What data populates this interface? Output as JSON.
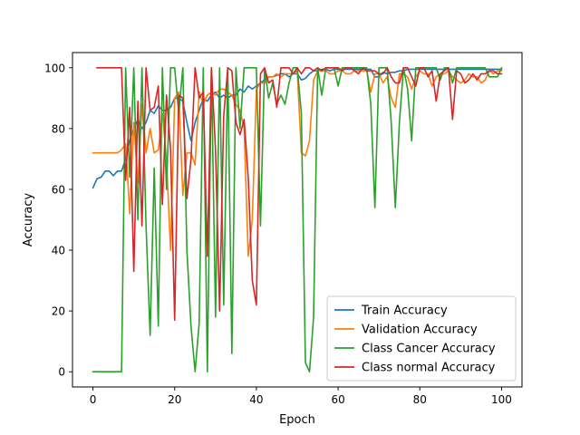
{
  "chart_data": {
    "type": "line",
    "title": "",
    "xlabel": "Epoch",
    "ylabel": "Accuracy",
    "xlim": [
      -5,
      105
    ],
    "ylim": [
      -5,
      105
    ],
    "xticks": [
      0,
      20,
      40,
      60,
      80,
      100
    ],
    "yticks": [
      0,
      20,
      40,
      60,
      80,
      100
    ],
    "grid": false,
    "legend_position": "lower right",
    "series": [
      {
        "name": "Train Accuracy",
        "color": "#1f77b4",
        "x": [
          0,
          1,
          2,
          3,
          4,
          5,
          6,
          7,
          8,
          9,
          10,
          11,
          12,
          13,
          14,
          15,
          16,
          17,
          18,
          19,
          20,
          21,
          22,
          23,
          24,
          25,
          26,
          27,
          28,
          29,
          30,
          31,
          32,
          33,
          34,
          35,
          36,
          37,
          38,
          39,
          40,
          41,
          42,
          43,
          44,
          45,
          46,
          47,
          48,
          49,
          50,
          51,
          52,
          53,
          54,
          55,
          56,
          57,
          58,
          59,
          60,
          61,
          62,
          63,
          64,
          65,
          66,
          67,
          68,
          69,
          70,
          71,
          72,
          73,
          74,
          75,
          76,
          77,
          78,
          79,
          80,
          81,
          82,
          83,
          84,
          85,
          86,
          87,
          88,
          89,
          90,
          91,
          92,
          93,
          94,
          95,
          96,
          97,
          98,
          99,
          100
        ],
        "y": [
          60.5,
          63.5,
          64,
          66,
          66,
          64.5,
          66,
          66,
          70,
          76,
          80,
          83,
          80,
          82,
          86,
          85,
          87.5,
          86,
          86,
          87,
          90,
          90,
          89,
          82,
          76,
          82,
          86,
          90,
          89,
          91,
          92,
          90,
          91,
          90,
          91,
          91,
          93,
          92,
          94,
          93,
          94,
          95,
          96,
          97,
          97,
          97.5,
          98,
          98,
          97,
          98,
          98,
          96,
          96.5,
          98,
          99,
          99,
          99.5,
          99.5,
          99,
          99.5,
          99.5,
          99.5,
          99.5,
          99.5,
          99.5,
          99.5,
          99.5,
          99.5,
          99.5,
          97,
          97,
          98.5,
          98,
          98.5,
          98.5,
          99,
          99,
          99.5,
          99.5,
          99.5,
          99.5,
          99.5,
          99.5,
          99.5,
          99.5,
          99.5,
          99.5,
          99.5,
          99.5,
          99.5,
          99.5,
          99.5,
          99.5,
          99.5,
          99.5,
          99.5,
          99.5,
          99.5,
          99.5,
          99.5,
          99.5
        ]
      },
      {
        "name": "Validation Accuracy",
        "color": "#ff7f0e",
        "x": [
          0,
          1,
          2,
          3,
          4,
          5,
          6,
          7,
          8,
          9,
          10,
          11,
          12,
          13,
          14,
          15,
          16,
          17,
          18,
          19,
          20,
          21,
          22,
          23,
          24,
          25,
          26,
          27,
          28,
          29,
          30,
          31,
          32,
          33,
          34,
          35,
          36,
          37,
          38,
          39,
          40,
          41,
          42,
          43,
          44,
          45,
          46,
          47,
          48,
          49,
          50,
          51,
          52,
          53,
          54,
          55,
          56,
          57,
          58,
          59,
          60,
          61,
          62,
          63,
          64,
          65,
          66,
          67,
          68,
          69,
          70,
          71,
          72,
          73,
          74,
          75,
          76,
          77,
          78,
          79,
          80,
          81,
          82,
          83,
          84,
          85,
          86,
          87,
          88,
          89,
          90,
          91,
          92,
          93,
          94,
          95,
          96,
          97,
          98,
          99,
          100
        ],
        "y": [
          72,
          72,
          72,
          72,
          72,
          72,
          72,
          73,
          75,
          52,
          82,
          62,
          88,
          72,
          80,
          72,
          73,
          85,
          70,
          40,
          90,
          92,
          58,
          72,
          72,
          68,
          92,
          88,
          91,
          92,
          91,
          93,
          93,
          92,
          91,
          88,
          86,
          80,
          38,
          50,
          93,
          95,
          95,
          97,
          97,
          98,
          97,
          98,
          98,
          98,
          99,
          72,
          71,
          76,
          96,
          99,
          99,
          99,
          98,
          98,
          99,
          99,
          98,
          98,
          99,
          99,
          99,
          99,
          92,
          98,
          98,
          95,
          97,
          90,
          87,
          98,
          98,
          97,
          93,
          97,
          99,
          98,
          98,
          94,
          97,
          98,
          98,
          99,
          97,
          96,
          95,
          96,
          98,
          97,
          97,
          95,
          96,
          99,
          98,
          99,
          99
        ]
      },
      {
        "name": "Class Cancer Accuracy",
        "color": "#2ca02c",
        "x": [
          0,
          1,
          2,
          3,
          4,
          5,
          6,
          7,
          8,
          9,
          10,
          11,
          12,
          13,
          14,
          15,
          16,
          17,
          18,
          19,
          20,
          21,
          22,
          23,
          24,
          25,
          26,
          27,
          28,
          29,
          30,
          31,
          32,
          33,
          34,
          35,
          36,
          37,
          38,
          39,
          40,
          41,
          42,
          43,
          44,
          45,
          46,
          47,
          48,
          49,
          50,
          51,
          52,
          53,
          54,
          55,
          56,
          57,
          58,
          59,
          60,
          61,
          62,
          63,
          64,
          65,
          66,
          67,
          68,
          69,
          70,
          71,
          72,
          73,
          74,
          75,
          76,
          77,
          78,
          79,
          80,
          81,
          82,
          83,
          84,
          85,
          86,
          87,
          88,
          89,
          90,
          91,
          92,
          93,
          94,
          95,
          96,
          97,
          98,
          99,
          100
        ],
        "y": [
          0,
          0,
          0,
          0,
          0,
          0,
          0,
          0,
          100,
          64,
          100,
          50,
          100,
          48,
          12,
          67,
          15,
          100,
          60,
          100,
          100,
          85,
          100,
          40,
          15,
          0,
          16,
          100,
          0,
          100,
          18,
          100,
          22,
          100,
          6,
          100,
          80,
          100,
          100,
          100,
          100,
          48,
          100,
          90,
          95,
          88,
          91,
          88,
          95,
          100,
          100,
          85,
          3,
          0,
          18,
          100,
          91,
          100,
          100,
          100,
          94,
          100,
          100,
          100,
          100,
          100,
          100,
          100,
          88,
          54,
          100,
          100,
          100,
          82,
          54,
          82,
          100,
          93,
          76,
          100,
          100,
          100,
          100,
          100,
          100,
          96,
          100,
          100,
          95,
          100,
          100,
          100,
          100,
          100,
          100,
          100,
          100,
          97,
          97,
          97,
          100
        ]
      },
      {
        "name": "Class normal Accuracy",
        "color": "#d62728",
        "x": [
          1,
          2,
          3,
          4,
          5,
          6,
          7,
          8,
          9,
          10,
          11,
          12,
          13,
          14,
          15,
          16,
          17,
          18,
          19,
          20,
          21,
          22,
          23,
          24,
          25,
          26,
          27,
          28,
          29,
          30,
          31,
          32,
          33,
          34,
          35,
          36,
          37,
          38,
          39,
          40,
          41,
          42,
          43,
          44,
          45,
          46,
          47,
          48,
          49,
          50,
          51,
          52,
          53,
          54,
          55,
          56,
          57,
          58,
          59,
          60,
          61,
          62,
          63,
          64,
          65,
          66,
          67,
          68,
          69,
          70,
          71,
          72,
          73,
          74,
          75,
          76,
          77,
          78,
          79,
          80,
          81,
          82,
          83,
          84,
          85,
          86,
          87,
          88,
          89,
          90,
          91,
          92,
          93,
          94,
          95,
          96,
          97,
          98,
          99,
          100
        ],
        "y": [
          100,
          100,
          100,
          100,
          100,
          100,
          100,
          63,
          87,
          33,
          89,
          48,
          100,
          86,
          87,
          94,
          55,
          91,
          73,
          17,
          91,
          90,
          57,
          70,
          100,
          90,
          92,
          38,
          100,
          73,
          20,
          84,
          100,
          99,
          82,
          78,
          83,
          64,
          30,
          22,
          98,
          100,
          95,
          96,
          87,
          100,
          100,
          100,
          98,
          100,
          98,
          100,
          100,
          99,
          100,
          99,
          100,
          100,
          100,
          100,
          99,
          100,
          100,
          99,
          98,
          100,
          99,
          99,
          99,
          98,
          98,
          100,
          97,
          95,
          95,
          100,
          100,
          97,
          94,
          100,
          100,
          97,
          99,
          89,
          98,
          99,
          100,
          83,
          99,
          98,
          95,
          96,
          98,
          96,
          98,
          98,
          99,
          99,
          98,
          98
        ]
      }
    ]
  }
}
